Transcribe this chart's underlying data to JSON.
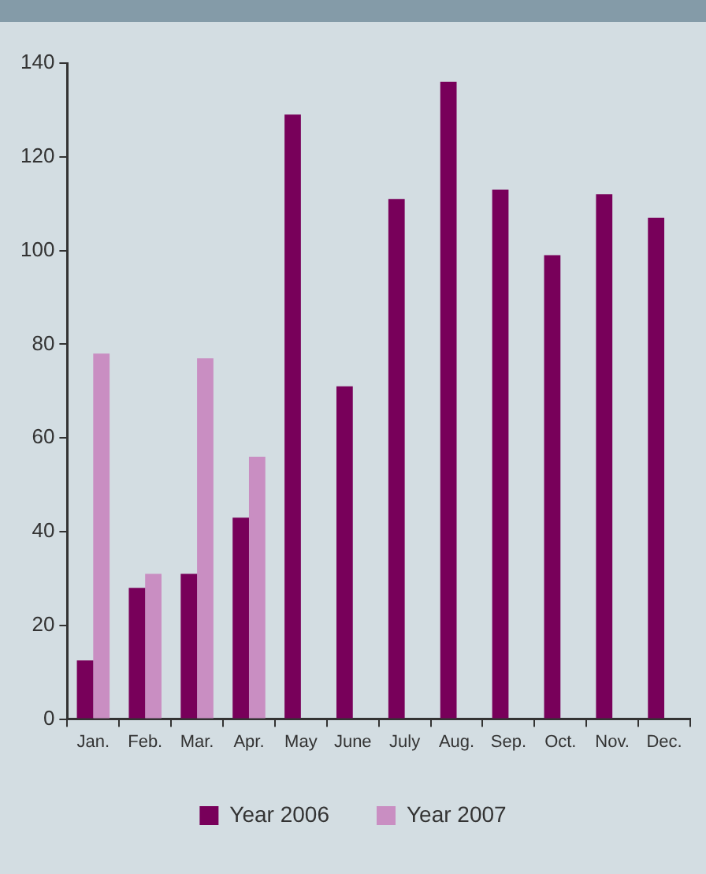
{
  "chart_data": {
    "type": "bar",
    "categories": [
      "Jan.",
      "Feb.",
      "Mar.",
      "Apr.",
      "May",
      "June",
      "July",
      "Aug.",
      "Sep.",
      "Oct.",
      "Nov.",
      "Dec."
    ],
    "series": [
      {
        "name": "Year 2006",
        "color": "#78005a",
        "values": [
          12.5,
          28,
          31,
          43,
          129,
          71,
          111,
          136,
          113,
          99,
          112,
          107
        ]
      },
      {
        "name": "Year 2007",
        "color": "#c98ec2",
        "values": [
          78,
          31,
          77,
          56,
          null,
          null,
          null,
          null,
          null,
          null,
          null,
          null
        ]
      }
    ],
    "ylim": [
      0,
      140
    ],
    "yticks": [
      0,
      20,
      40,
      60,
      80,
      100,
      120,
      140
    ],
    "grid": false,
    "legend": "bottom"
  }
}
